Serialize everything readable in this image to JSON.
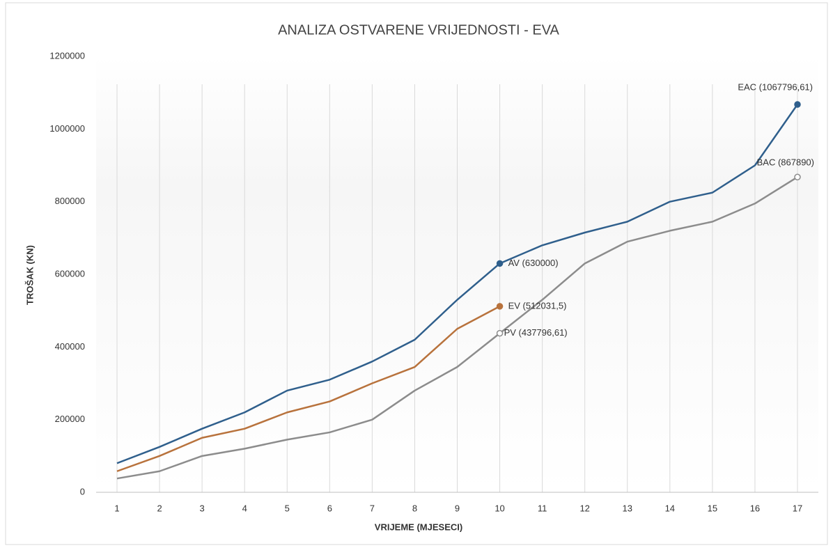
{
  "chart_data": {
    "type": "line",
    "title": "ANALIZA OSTVARENE VRIJEDNOSTI - EVA",
    "xlabel": "VRIJEME (MJESECI)",
    "ylabel": "TROŠAK (KN)",
    "categories": [
      "1",
      "2",
      "3",
      "4",
      "5",
      "6",
      "7",
      "8",
      "9",
      "10",
      "11",
      "12",
      "13",
      "14",
      "15",
      "16",
      "17"
    ],
    "ylim": [
      0,
      1200000
    ],
    "yticks": [
      0,
      200000,
      400000,
      600000,
      800000,
      1000000,
      1200000
    ],
    "grid": true,
    "series": [
      {
        "color": "#2f5f8c",
        "values": [
          80000,
          125000,
          175000,
          220000,
          280000,
          310000,
          360000,
          420000,
          530000,
          630000,
          680000,
          715000,
          745000,
          800000,
          825000,
          900000,
          1067796.61
        ]
      },
      {
        "color": "#b8723c",
        "values": [
          58000,
          100000,
          150000,
          175000,
          220000,
          250000,
          300000,
          345000,
          450000,
          512031.5,
          null,
          null,
          null,
          null,
          null,
          null,
          null
        ]
      },
      {
        "color": "#8c8c8c",
        "values": [
          38000,
          58000,
          100000,
          120000,
          145000,
          165000,
          200000,
          280000,
          345000,
          437796.61,
          530000,
          630000,
          690000,
          720000,
          745000,
          795000,
          867890
        ]
      }
    ],
    "annotations": [
      "EAC (1067796,61)",
      "AV (630000)",
      "EV (512031,5)",
      "PV (437796,61)",
      "BAC (867890)"
    ]
  }
}
